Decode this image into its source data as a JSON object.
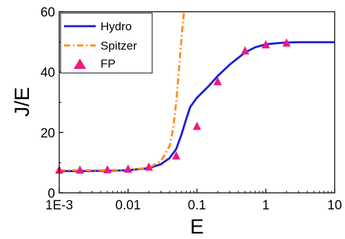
{
  "chart_data": {
    "type": "line",
    "title": "",
    "xlabel": "E",
    "ylabel": "J/E",
    "x_scale": "log",
    "xlim": [
      0.001,
      10
    ],
    "ylim": [
      0,
      60
    ],
    "x_ticks": [
      {
        "value": 0.001,
        "label": "1E-3"
      },
      {
        "value": 0.01,
        "label": "0.01"
      },
      {
        "value": 0.1,
        "label": "0.1"
      },
      {
        "value": 1,
        "label": "1"
      },
      {
        "value": 10,
        "label": "10"
      }
    ],
    "y_ticks": [
      {
        "value": 0,
        "label": "0"
      },
      {
        "value": 20,
        "label": "20"
      },
      {
        "value": 40,
        "label": "40"
      },
      {
        "value": 60,
        "label": "60"
      }
    ],
    "grid": false,
    "legend_position": "top-left",
    "series": [
      {
        "name": "Hydro",
        "style": "solid line",
        "color": "#1f1fd6",
        "x": [
          0.001,
          0.002,
          0.005,
          0.01,
          0.02,
          0.03,
          0.04,
          0.05,
          0.06,
          0.07,
          0.08,
          0.1,
          0.15,
          0.2,
          0.3,
          0.5,
          0.7,
          1,
          1.5,
          2,
          3,
          5,
          10
        ],
        "y": [
          7.2,
          7.2,
          7.3,
          7.5,
          8.2,
          9.5,
          11.5,
          14.5,
          19.5,
          24.5,
          28.5,
          31.5,
          35.5,
          38.7,
          42.5,
          46.5,
          48.2,
          49.2,
          49.6,
          49.8,
          49.9,
          49.9,
          49.9
        ]
      },
      {
        "name": "Spitzer",
        "style": "dash-dot line",
        "color": "#ff8c1a",
        "x": [
          0.001,
          0.005,
          0.01,
          0.02,
          0.03,
          0.04,
          0.045,
          0.05,
          0.055,
          0.06,
          0.065
        ],
        "y": [
          7.5,
          7.5,
          7.6,
          8.3,
          10.5,
          15.5,
          21,
          30,
          41,
          52,
          60
        ]
      },
      {
        "name": "FP",
        "style": "triangle markers",
        "color": "#f0187e",
        "x": [
          0.001,
          0.002,
          0.005,
          0.01,
          0.02,
          0.05,
          0.1,
          0.2,
          0.5,
          1,
          2
        ],
        "y": [
          7.5,
          7.5,
          7.6,
          7.8,
          8.5,
          12.2,
          22,
          36.8,
          47,
          49,
          49.6
        ]
      }
    ]
  }
}
